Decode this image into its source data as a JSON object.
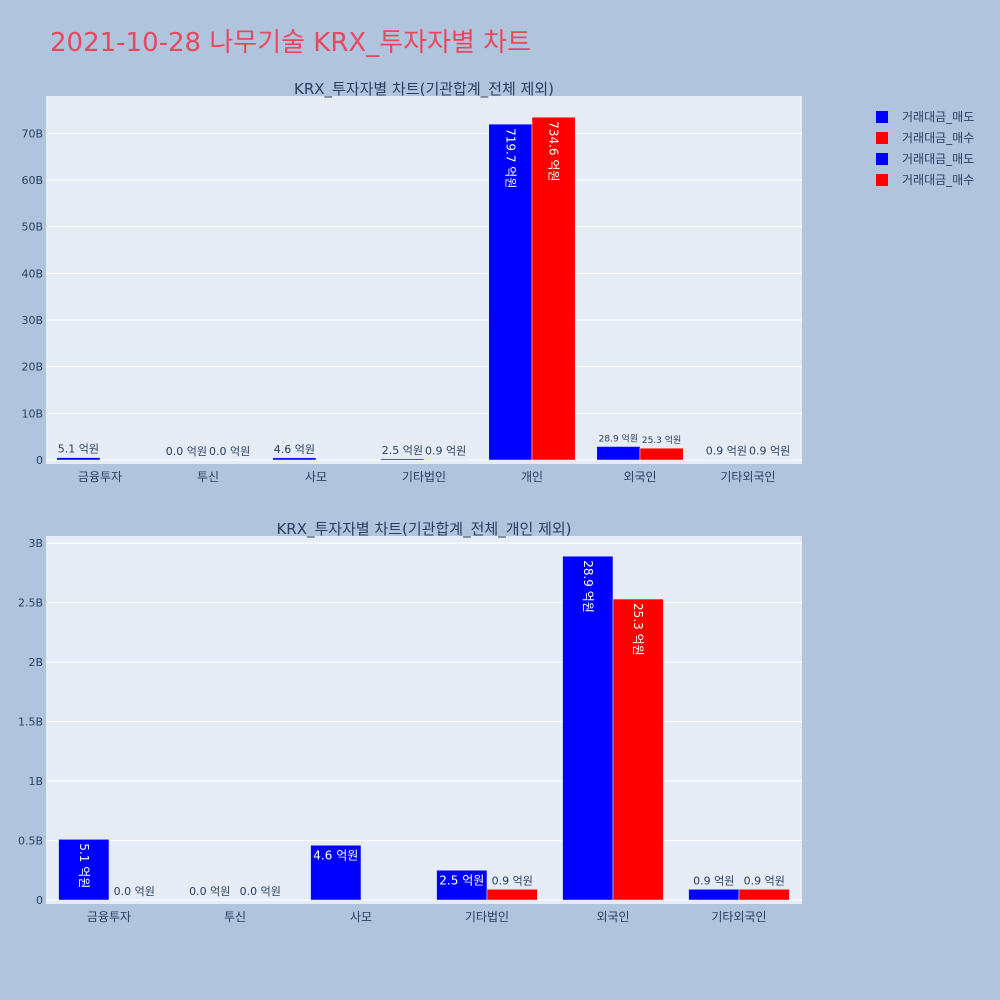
{
  "title": "2021-10-28 나무기술 KRX_투자자별 차트",
  "legend": [
    {
      "label": "거래대금_매도",
      "color": "#0000ff"
    },
    {
      "label": "거래대금_매수",
      "color": "#ff0000"
    },
    {
      "label": "거래대금_매도",
      "color": "#0000ff"
    },
    {
      "label": "거래대금_매수",
      "color": "#ff0000"
    }
  ],
  "chart_data": [
    {
      "type": "bar",
      "title": "KRX_투자자별 차트(기관합계_전체 제외)",
      "categories": [
        "금융투자",
        "투신",
        "사모",
        "기타법인",
        "개인",
        "외국인",
        "기타외국인"
      ],
      "ylim": [
        0,
        78000000000
      ],
      "yticks": [
        0,
        10000000000,
        20000000000,
        30000000000,
        40000000000,
        50000000000,
        60000000000,
        70000000000
      ],
      "ytick_labels": [
        "0",
        "10B",
        "20B",
        "30B",
        "40B",
        "50B",
        "60B",
        "70B"
      ],
      "grid": true,
      "series": [
        {
          "name": "거래대금_매도",
          "color": "#0000ff",
          "values": [
            510000000,
            0,
            460000000,
            250000000,
            71970000000,
            2890000000,
            90000000
          ],
          "labels": [
            "5.1 억원",
            "0.0 억원",
            "4.6 억원",
            "2.5 억원",
            "719.7 억원",
            "28.9 억원",
            "0.9 억원"
          ]
        },
        {
          "name": "거래대금_매수",
          "color": "#ff0000",
          "values": [
            0,
            0,
            0,
            90000000,
            73460000000,
            2530000000,
            90000000
          ],
          "labels": [
            "",
            "0.0 억원",
            "",
            "0.9 억원",
            "734.6 억원",
            "25.3 억원",
            "0.9 억원"
          ]
        }
      ]
    },
    {
      "type": "bar",
      "title": "KRX_투자자별 차트(기관합계_전체_개인 제외)",
      "categories": [
        "금융투자",
        "투신",
        "사모",
        "기타법인",
        "외국인",
        "기타외국인"
      ],
      "ylim": [
        0,
        3060000000
      ],
      "yticks": [
        0,
        500000000,
        1000000000,
        1500000000,
        2000000000,
        2500000000,
        3000000000
      ],
      "ytick_labels": [
        "0",
        "0.5B",
        "1B",
        "1.5B",
        "2B",
        "2.5B",
        "3B"
      ],
      "grid": true,
      "series": [
        {
          "name": "거래대금_매도",
          "color": "#0000ff",
          "values": [
            510000000,
            0,
            460000000,
            250000000,
            2890000000,
            90000000
          ],
          "labels": [
            "5.1 억원",
            "0.0 억원",
            "4.6 억원",
            "2.5 억원",
            "28.9 억원",
            "0.9 억원"
          ]
        },
        {
          "name": "거래대금_매수",
          "color": "#ff0000",
          "values": [
            0,
            0,
            0,
            90000000,
            2530000000,
            90000000
          ],
          "labels": [
            "0.0 억원",
            "0.0 억원",
            "",
            "0.9 억원",
            "25.3 억원",
            "0.9 억원"
          ]
        }
      ]
    }
  ]
}
